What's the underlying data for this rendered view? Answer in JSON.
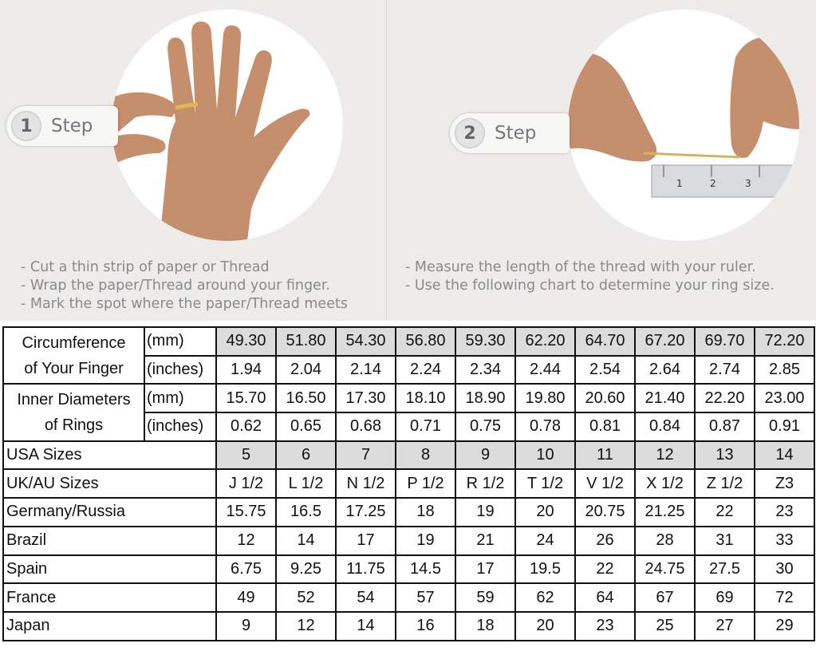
{
  "steps": [
    {
      "number": "1",
      "label": "Step",
      "instructions": [
        "- Cut a thin strip of paper or Thread",
        "- Wrap the paper/Thread around your finger.",
        "- Mark the spot where the paper/Thread meets"
      ]
    },
    {
      "number": "2",
      "label": "Step",
      "instructions": [
        "- Measure the length of the thread with your ruler.",
        "- Use the following chart to determine your ring size."
      ]
    }
  ],
  "ruler_marks": [
    "1",
    "2",
    "3"
  ],
  "table": {
    "circumference": {
      "label_lines": [
        "Circumference",
        "of Your Finger"
      ],
      "mm_unit": "(mm)",
      "inch_unit": "(inches)",
      "mm": [
        "49.30",
        "51.80",
        "54.30",
        "56.80",
        "59.30",
        "62.20",
        "64.70",
        "67.20",
        "69.70",
        "72.20"
      ],
      "inches": [
        "1.94",
        "2.04",
        "2.14",
        "2.24",
        "2.34",
        "2.44",
        "2.54",
        "2.64",
        "2.74",
        "2.85"
      ]
    },
    "diameter": {
      "label_lines": [
        "Inner Diameters",
        "of Rings"
      ],
      "mm_unit": "(mm)",
      "inch_unit": "(inches)",
      "mm": [
        "15.70",
        "16.50",
        "17.30",
        "18.10",
        "18.90",
        "19.80",
        "20.60",
        "21.40",
        "22.20",
        "23.00"
      ],
      "inches": [
        "0.62",
        "0.65",
        "0.68",
        "0.71",
        "0.75",
        "0.78",
        "0.81",
        "0.84",
        "0.87",
        "0.91"
      ]
    },
    "rows": [
      {
        "label": "USA Sizes",
        "shaded": true,
        "values": [
          "5",
          "6",
          "7",
          "8",
          "9",
          "10",
          "11",
          "12",
          "13",
          "14"
        ]
      },
      {
        "label": "UK/AU Sizes",
        "values": [
          "J 1/2",
          "L 1/2",
          "N 1/2",
          "P 1/2",
          "R 1/2",
          "T 1/2",
          "V 1/2",
          "X 1/2",
          "Z 1/2",
          "Z3"
        ]
      },
      {
        "label": "Germany/Russia",
        "values": [
          "15.75",
          "16.5",
          "17.25",
          "18",
          "19",
          "20",
          "20.75",
          "21.25",
          "22",
          "23"
        ]
      },
      {
        "label": "Brazil",
        "values": [
          "12",
          "14",
          "17",
          "19",
          "21",
          "24",
          "26",
          "28",
          "31",
          "33"
        ]
      },
      {
        "label": "Spain",
        "values": [
          "6.75",
          "9.25",
          "11.75",
          "14.5",
          "17",
          "19.5",
          "22",
          "24.75",
          "27.5",
          "30"
        ]
      },
      {
        "label": "France",
        "values": [
          "49",
          "52",
          "54",
          "57",
          "59",
          "62",
          "64",
          "67",
          "69",
          "72"
        ]
      },
      {
        "label": "Japan",
        "values": [
          "9",
          "12",
          "14",
          "16",
          "18",
          "20",
          "23",
          "25",
          "27",
          "29"
        ]
      }
    ]
  }
}
